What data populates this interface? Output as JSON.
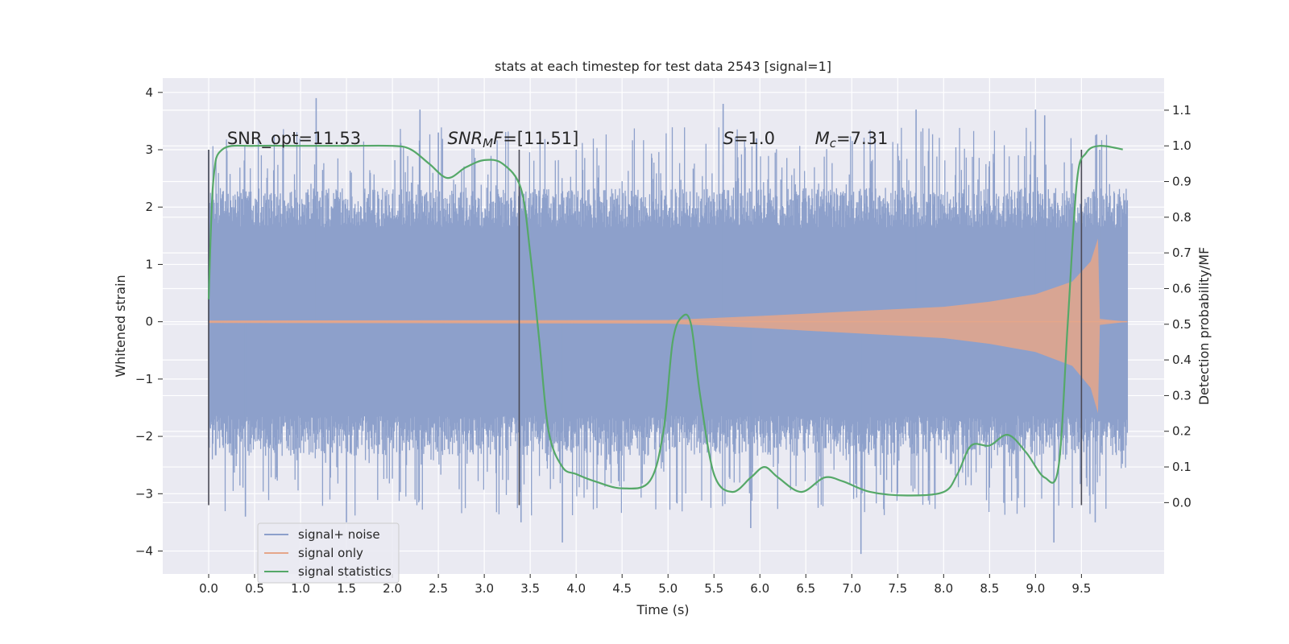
{
  "chart_data": {
    "type": "line",
    "title": "stats at each timestep for test data 2543 [signal=1]",
    "xlabel": "Time (s)",
    "ylabel": "Whitened strain",
    "ylabel_right": "Detection probability/MF",
    "xlim": [
      -0.5,
      10.4
    ],
    "ylim": [
      -4.4,
      4.25
    ],
    "ylim_right": [
      -0.2,
      1.19
    ],
    "x_ticks": [
      0.0,
      0.5,
      1.0,
      1.5,
      2.0,
      2.5,
      3.0,
      3.5,
      4.0,
      4.5,
      5.0,
      5.5,
      6.0,
      6.5,
      7.0,
      7.5,
      8.0,
      8.5,
      9.0,
      9.5
    ],
    "x_tick_labels": [
      "0.0",
      "0.5",
      "1.0",
      "1.5",
      "2.0",
      "2.5",
      "3.0",
      "3.5",
      "4.0",
      "4.5",
      "5.0",
      "5.5",
      "6.0",
      "6.5",
      "7.0",
      "7.5",
      "8.0",
      "8.5",
      "9.0",
      "9.5"
    ],
    "y_ticks": [
      4,
      3,
      2,
      1,
      0,
      -1,
      -2,
      -3,
      -4
    ],
    "y_tick_labels": [
      "4",
      "3",
      "2",
      "1",
      "0",
      "−1",
      "−2",
      "−3",
      "−4"
    ],
    "y_right_ticks": [
      1.1,
      1.0,
      0.9,
      0.8,
      0.7,
      0.6,
      0.5,
      0.4,
      0.3,
      0.2,
      0.1,
      0.0
    ],
    "y_right_tick_labels": [
      "1.1",
      "1.0",
      "0.9",
      "0.8",
      "0.7",
      "0.6",
      "0.5",
      "0.4",
      "0.3",
      "0.2",
      "0.1",
      "0.0"
    ],
    "grid": true,
    "legend_position": "lower-left",
    "legend": [
      {
        "label": "signal+ noise",
        "color": "#8da0cb"
      },
      {
        "label": "signal only",
        "color": "#e5a68a"
      },
      {
        "label": "signal statistics",
        "color": "#55a868"
      }
    ],
    "annotations": [
      {
        "text": "SNR_opt=11.53",
        "x": 0.2,
        "y": 3.1
      },
      {
        "text": "SNR_M F=[11.51]",
        "x": 2.6,
        "y": 3.1
      },
      {
        "text": "S=1.0",
        "x": 5.6,
        "y": 3.1
      },
      {
        "text": "M_c=7.31",
        "x": 6.6,
        "y": 3.1
      }
    ],
    "vertical_markers": [
      0.0,
      3.38,
      9.5
    ],
    "vertical_marker_range": [
      -3.2,
      3.0
    ],
    "series": [
      {
        "name": "signal+ noise",
        "axis": "left",
        "color": "#8da0cb",
        "x_range": [
          0.0,
          10.0
        ],
        "band_typical": [
          -2.0,
          2.0
        ],
        "peaks": [
          {
            "x": 0.0,
            "y": 3.0
          },
          {
            "x": 1.17,
            "y": 3.9
          },
          {
            "x": 2.3,
            "y": 3.7
          },
          {
            "x": 2.5,
            "y": 3.3
          },
          {
            "x": 5.6,
            "y": 3.8
          },
          {
            "x": 7.7,
            "y": 3.7
          },
          {
            "x": 9.0,
            "y": 3.7
          },
          {
            "x": 9.1,
            "y": 3.6
          },
          {
            "x": 9.7,
            "y": 3.0
          },
          {
            "x": 3.4,
            "y": -3.5
          },
          {
            "x": 3.85,
            "y": -3.85
          },
          {
            "x": 5.9,
            "y": -3.6
          },
          {
            "x": 7.1,
            "y": -4.05
          },
          {
            "x": 9.2,
            "y": -3.85
          },
          {
            "x": 9.65,
            "y": -3.5
          },
          {
            "x": 0.4,
            "y": -3.4
          },
          {
            "x": 1.5,
            "y": -3.5
          }
        ]
      },
      {
        "name": "signal only",
        "axis": "left",
        "color": "#e5a68a",
        "envelope": [
          {
            "x": 0.0,
            "y": 0.02
          },
          {
            "x": 5.0,
            "y": 0.03
          },
          {
            "x": 6.0,
            "y": 0.1
          },
          {
            "x": 7.0,
            "y": 0.18
          },
          {
            "x": 8.0,
            "y": 0.26
          },
          {
            "x": 8.5,
            "y": 0.35
          },
          {
            "x": 9.0,
            "y": 0.48
          },
          {
            "x": 9.4,
            "y": 0.7
          },
          {
            "x": 9.6,
            "y": 1.05
          },
          {
            "x": 9.68,
            "y": 1.45
          },
          {
            "x": 9.7,
            "y": 0.05
          },
          {
            "x": 10.0,
            "y": 0.0
          }
        ]
      },
      {
        "name": "signal statistics",
        "axis": "right",
        "color": "#55a868",
        "points": [
          {
            "x": 0.0,
            "y": 0.57
          },
          {
            "x": 0.05,
            "y": 0.9
          },
          {
            "x": 0.15,
            "y": 0.99
          },
          {
            "x": 0.5,
            "y": 1.0
          },
          {
            "x": 1.0,
            "y": 1.0
          },
          {
            "x": 1.5,
            "y": 1.0
          },
          {
            "x": 2.0,
            "y": 1.0
          },
          {
            "x": 2.2,
            "y": 0.99
          },
          {
            "x": 2.4,
            "y": 0.95
          },
          {
            "x": 2.6,
            "y": 0.91
          },
          {
            "x": 2.8,
            "y": 0.94
          },
          {
            "x": 3.0,
            "y": 0.96
          },
          {
            "x": 3.2,
            "y": 0.95
          },
          {
            "x": 3.4,
            "y": 0.88
          },
          {
            "x": 3.5,
            "y": 0.7
          },
          {
            "x": 3.6,
            "y": 0.45
          },
          {
            "x": 3.7,
            "y": 0.2
          },
          {
            "x": 3.85,
            "y": 0.1
          },
          {
            "x": 4.0,
            "y": 0.08
          },
          {
            "x": 4.2,
            "y": 0.06
          },
          {
            "x": 4.5,
            "y": 0.04
          },
          {
            "x": 4.8,
            "y": 0.06
          },
          {
            "x": 4.95,
            "y": 0.2
          },
          {
            "x": 5.05,
            "y": 0.45
          },
          {
            "x": 5.15,
            "y": 0.52
          },
          {
            "x": 5.25,
            "y": 0.5
          },
          {
            "x": 5.35,
            "y": 0.3
          },
          {
            "x": 5.5,
            "y": 0.08
          },
          {
            "x": 5.7,
            "y": 0.03
          },
          {
            "x": 5.9,
            "y": 0.07
          },
          {
            "x": 6.05,
            "y": 0.1
          },
          {
            "x": 6.2,
            "y": 0.07
          },
          {
            "x": 6.45,
            "y": 0.03
          },
          {
            "x": 6.7,
            "y": 0.07
          },
          {
            "x": 6.9,
            "y": 0.06
          },
          {
            "x": 7.2,
            "y": 0.03
          },
          {
            "x": 7.6,
            "y": 0.02
          },
          {
            "x": 8.0,
            "y": 0.03
          },
          {
            "x": 8.15,
            "y": 0.08
          },
          {
            "x": 8.3,
            "y": 0.16
          },
          {
            "x": 8.5,
            "y": 0.16
          },
          {
            "x": 8.7,
            "y": 0.19
          },
          {
            "x": 8.9,
            "y": 0.14
          },
          {
            "x": 9.1,
            "y": 0.07
          },
          {
            "x": 9.25,
            "y": 0.1
          },
          {
            "x": 9.35,
            "y": 0.5
          },
          {
            "x": 9.45,
            "y": 0.9
          },
          {
            "x": 9.55,
            "y": 0.98
          },
          {
            "x": 9.7,
            "y": 1.0
          },
          {
            "x": 9.95,
            "y": 0.99
          }
        ]
      }
    ]
  }
}
